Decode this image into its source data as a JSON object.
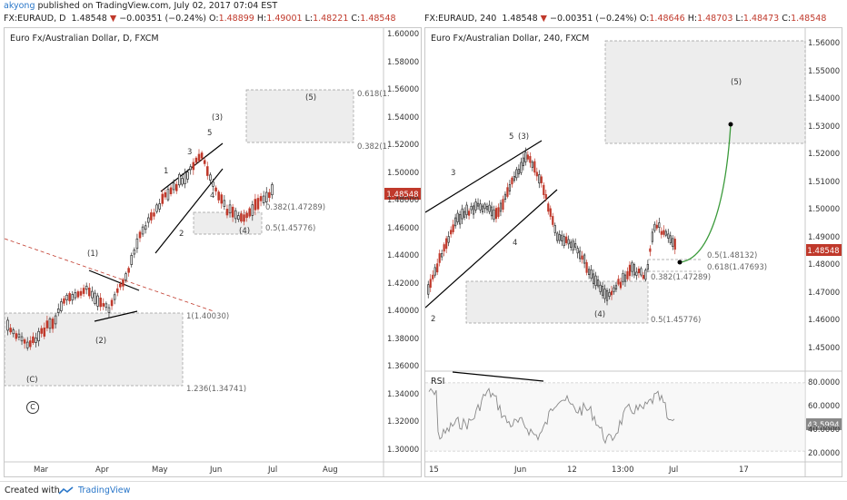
{
  "header": {
    "user": "akyong",
    "published": "published on TradingView.com, July 02, 2017 07:04 EST"
  },
  "left": {
    "quote": {
      "symbol": "FX:EURAUD, D",
      "price": "1.48548",
      "change": "−0.00351 (−0.24%)",
      "o_label": "O:",
      "o": "1.48899",
      "h_label": "H:",
      "h": "1.49001",
      "l_label": "L:",
      "l": "1.48221",
      "c_label": "C:",
      "c": "1.48548"
    },
    "title": "Euro Fx/Australian Dollar, D, FXCM",
    "price_label": "1.48548",
    "y_ticks": [
      "1.60000",
      "1.58000",
      "1.56000",
      "1.54000",
      "1.52000",
      "1.50000",
      "1.48000",
      "1.46000",
      "1.44000",
      "1.42000",
      "1.40000",
      "1.38000",
      "1.36000",
      "1.34000",
      "1.32000",
      "1.30000"
    ],
    "x_ticks": [
      "Mar",
      "Apr",
      "May",
      "Jun",
      "Jul",
      "Aug"
    ],
    "waves": [
      "(1)",
      "(2)",
      "(C)",
      "1",
      "2",
      "3",
      "4",
      "5",
      "(3)",
      "(4)",
      "(5)"
    ],
    "fib": [
      "0.618(1.",
      "0.382(1.",
      "0.382(1.47289)",
      "0.5(1.45776)",
      "1(1.40030)",
      "1.236(1.34741)"
    ],
    "copyright": "C"
  },
  "right": {
    "quote": {
      "symbol": "FX:EURAUD, 240",
      "price": "1.48548",
      "change": "−0.00351 (−0.24%)",
      "o_label": "O:",
      "o": "1.48646",
      "h_label": "H:",
      "h": "1.48703",
      "l_label": "L:",
      "l": "1.48473",
      "c_label": "C:",
      "c": "1.48548"
    },
    "title": "Euro Fx/Australian Dollar, 240, FXCM",
    "price_label": "1.48548",
    "y_ticks": [
      "1.56000",
      "1.55000",
      "1.54000",
      "1.53000",
      "1.52000",
      "1.51000",
      "1.50000",
      "1.49000",
      "1.48000",
      "1.47000",
      "1.46000",
      "1.45000"
    ],
    "x_ticks": [
      "15",
      "Jun",
      "12",
      "13:00",
      "Jul",
      "17"
    ],
    "waves": [
      "3",
      "5",
      "(3)",
      "4",
      "2",
      "(4)",
      "(5)"
    ],
    "fib": [
      "0.5(1.48132)",
      "0.618(1.47693)",
      "0.382(1.47289)",
      "0.5(1.45776)"
    ],
    "rsi": {
      "label": "RSI",
      "value": "43.5994",
      "ticks": [
        "80.0000",
        "60.0000",
        "40.0000",
        "20.0000"
      ]
    }
  },
  "footer": {
    "created": "Created with",
    "brand": "TradingView"
  },
  "chart_data": [
    {
      "type": "candlestick",
      "title": "Euro Fx/Australian Dollar, D, FXCM",
      "xlabel": "",
      "ylabel": "",
      "x_ticks": [
        "Mar",
        "Apr",
        "May",
        "Jun",
        "Jul",
        "Aug"
      ],
      "ylim": [
        1.29,
        1.605
      ],
      "last_close": 1.48548,
      "approx_path": {
        "x": [
          "Mar",
          "Apr",
          "May",
          "Jun",
          "Jul"
        ],
        "y": [
          1.395,
          1.425,
          1.45,
          1.515,
          1.485
        ]
      },
      "fib_levels": {
        "0.382": 1.47289,
        "0.5": 1.45776,
        "1": 1.4003,
        "1.236": 1.34741
      }
    },
    {
      "type": "candlestick",
      "title": "Euro Fx/Australian Dollar, 240, FXCM",
      "xlabel": "",
      "ylabel": "",
      "x_ticks": [
        "15",
        "Jun",
        "12",
        "13:00",
        "Jul",
        "17"
      ],
      "ylim": [
        1.44,
        1.565
      ],
      "last_close": 1.48548,
      "fib_levels": {
        "0.5": 1.48132,
        "0.618": 1.47693,
        "0.382": 1.47289,
        "0.5_lower": 1.45776
      }
    },
    {
      "type": "line",
      "title": "RSI",
      "ylim": [
        10,
        95
      ],
      "last_value": 43.5994,
      "levels": [
        80,
        20
      ]
    }
  ]
}
